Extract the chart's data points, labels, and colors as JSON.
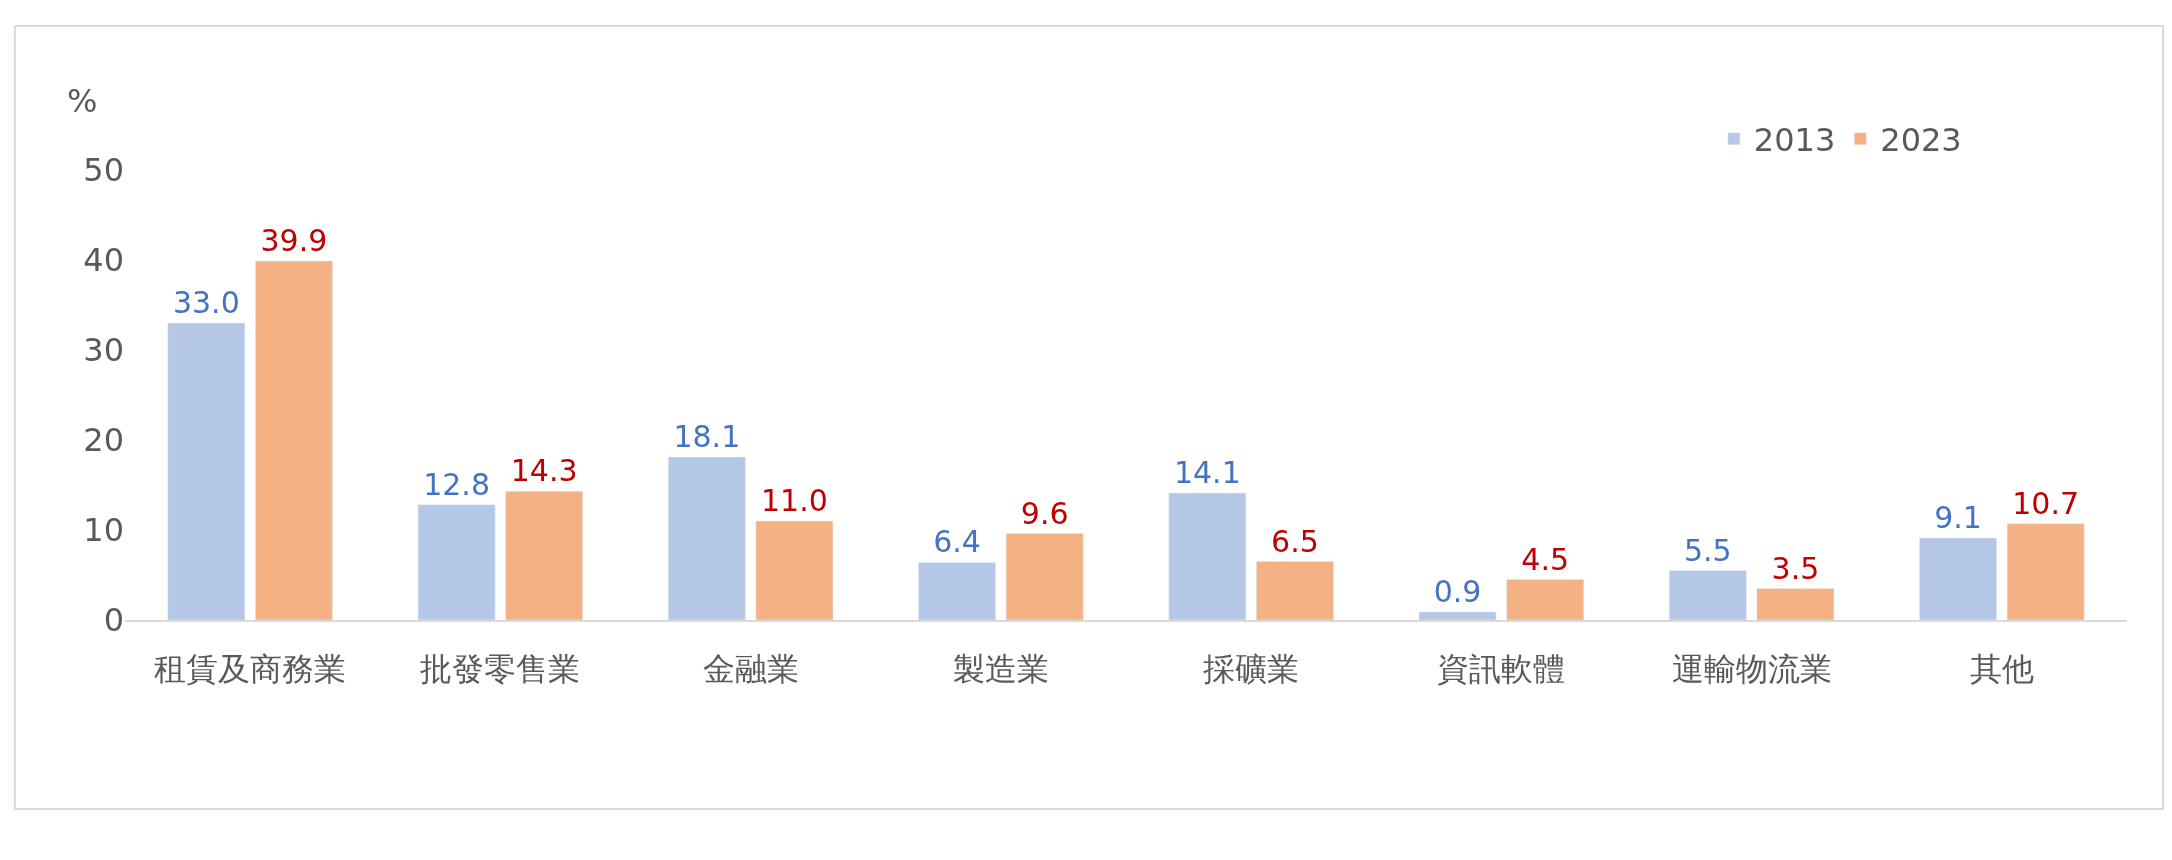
{
  "chart_data": {
    "type": "bar",
    "ylabel": "%",
    "categories": [
      "租賃及商務業",
      "批發零售業",
      "金融業",
      "製造業",
      "採礦業",
      "資訊軟體",
      "運輸物流業",
      "其他"
    ],
    "series": [
      {
        "name": "2013",
        "color": "#b4c7e7",
        "values": [
          33.0,
          12.8,
          18.1,
          6.4,
          14.1,
          0.9,
          5.5,
          9.1
        ],
        "value_labels": [
          "33.0",
          "12.8",
          "18.1",
          "6.4",
          "14.1",
          "0.9",
          "5.5",
          "9.1"
        ]
      },
      {
        "name": "2023",
        "color": "#f4b183",
        "values": [
          39.9,
          14.3,
          11.0,
          9.6,
          6.5,
          4.5,
          3.5,
          10.7
        ],
        "value_labels": [
          "39.9",
          "14.3",
          "11.0",
          "9.6",
          "6.5",
          "4.5",
          "3.5",
          "10.7"
        ]
      }
    ],
    "ylim": [
      0,
      50
    ],
    "yticks": [
      0,
      10,
      20,
      30,
      40,
      50
    ],
    "legend": "top right"
  }
}
